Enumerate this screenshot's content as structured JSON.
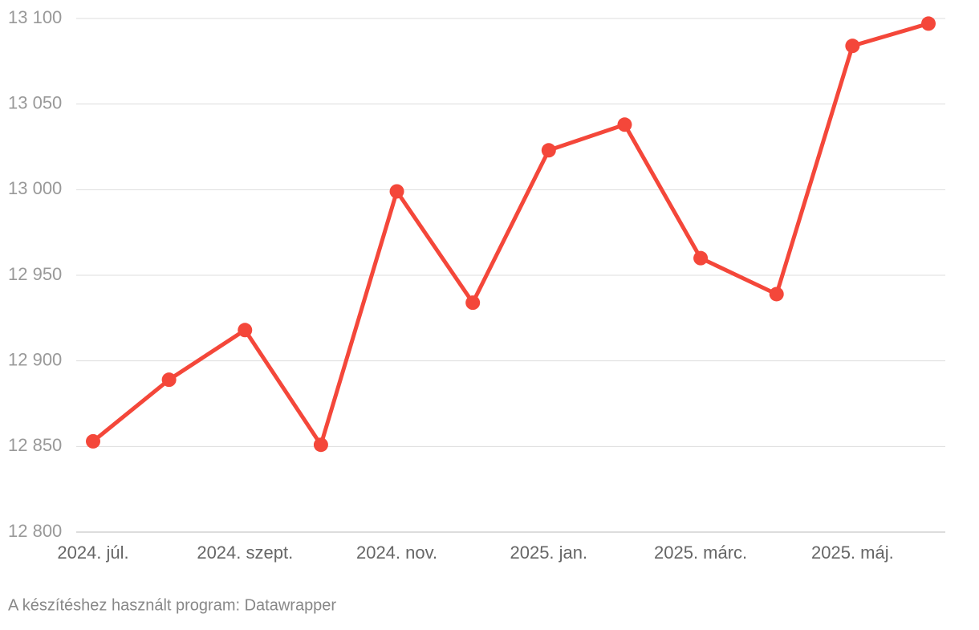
{
  "chart_data": {
    "type": "line",
    "categories": [
      "2024. júl.",
      null,
      "2024. szept.",
      null,
      "2024. nov.",
      null,
      "2025. jan.",
      null,
      "2025. márc.",
      null,
      "2025. máj.",
      null
    ],
    "series": [
      {
        "color": "#f4473a",
        "values": [
          12853,
          12889,
          12918,
          12851,
          12999,
          12934,
          13023,
          13038,
          12960,
          12939,
          13084,
          13097
        ]
      }
    ],
    "ylim": [
      12800,
      13100
    ],
    "yticks": [
      {
        "value": 12800,
        "label": "12 800"
      },
      {
        "value": 12850,
        "label": "12 850"
      },
      {
        "value": 12900,
        "label": "12 900"
      },
      {
        "value": 12950,
        "label": "12 950"
      },
      {
        "value": 13000,
        "label": "13 000"
      },
      {
        "value": 13050,
        "label": "13 050"
      },
      {
        "value": 13100,
        "label": "13 100"
      }
    ],
    "grid": true,
    "footer": "A készítéshez használt program: Datawrapper"
  }
}
